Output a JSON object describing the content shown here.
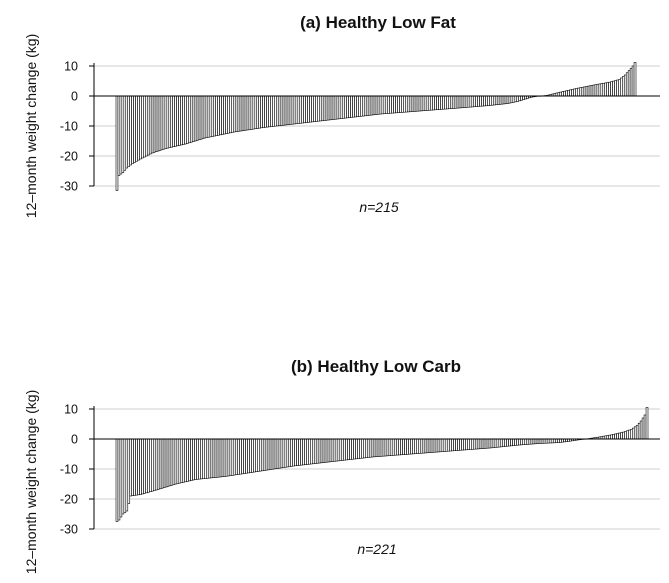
{
  "chart_data": [
    {
      "type": "bar",
      "title": "(a) Healthy Low Fat",
      "ylabel": "12–month weight change (kg)",
      "xlabel": "",
      "annotation": "n=215",
      "n": 215,
      "ylim": [
        -30,
        12
      ],
      "yticks": [
        10,
        0,
        -10,
        -20,
        -30
      ],
      "grid": true,
      "sorted": "ascending",
      "anchors": [
        [
          0,
          -31.5
        ],
        [
          1,
          -26.5
        ],
        [
          3,
          -25.5
        ],
        [
          5,
          -24
        ],
        [
          8,
          -22.5
        ],
        [
          12,
          -21
        ],
        [
          18,
          -19
        ],
        [
          25,
          -17.5
        ],
        [
          35,
          -16
        ],
        [
          45,
          -14
        ],
        [
          60,
          -12
        ],
        [
          75,
          -10.5
        ],
        [
          95,
          -9
        ],
        [
          115,
          -7.5
        ],
        [
          135,
          -6
        ],
        [
          155,
          -5
        ],
        [
          175,
          -4
        ],
        [
          190,
          -3.2
        ],
        [
          200,
          -2.5
        ],
        [
          205,
          -1.8
        ],
        [
          208,
          -1.2
        ],
        [
          212,
          -0.4
        ],
        [
          215,
          -0.1
        ],
        [
          220,
          0.2
        ],
        [
          225,
          1
        ],
        [
          235,
          2.5
        ],
        [
          245,
          3.8
        ],
        [
          252,
          4.6
        ],
        [
          257,
          5.5
        ],
        [
          260,
          7
        ],
        [
          262,
          8.5
        ],
        [
          264,
          10
        ],
        [
          265,
          11.2
        ]
      ]
    },
    {
      "type": "bar",
      "title": "(b) Healthy Low Carb",
      "ylabel": "12–month weight change (kg)",
      "xlabel": "",
      "annotation": "n=221",
      "n": 221,
      "ylim": [
        -30,
        12
      ],
      "yticks": [
        10,
        0,
        -10,
        -20,
        -30
      ],
      "grid": true,
      "sorted": "ascending",
      "anchors": [
        [
          0,
          -27.5
        ],
        [
          1,
          -27
        ],
        [
          3,
          -25
        ],
        [
          5,
          -24
        ],
        [
          7,
          -19
        ],
        [
          12,
          -18.5
        ],
        [
          20,
          -17
        ],
        [
          30,
          -15
        ],
        [
          40,
          -13.5
        ],
        [
          55,
          -12.5
        ],
        [
          70,
          -11
        ],
        [
          90,
          -9
        ],
        [
          110,
          -7.5
        ],
        [
          130,
          -6
        ],
        [
          150,
          -5
        ],
        [
          170,
          -4
        ],
        [
          190,
          -3
        ],
        [
          205,
          -2
        ],
        [
          215,
          -1.5
        ],
        [
          225,
          -1.2
        ],
        [
          230,
          -0.8
        ],
        [
          235,
          -0.3
        ],
        [
          240,
          0.1
        ],
        [
          245,
          0.6
        ],
        [
          252,
          1.4
        ],
        [
          258,
          2.3
        ],
        [
          262,
          3.2
        ],
        [
          265,
          4.5
        ],
        [
          267,
          6
        ],
        [
          269,
          8
        ],
        [
          270,
          10.5
        ]
      ]
    }
  ]
}
